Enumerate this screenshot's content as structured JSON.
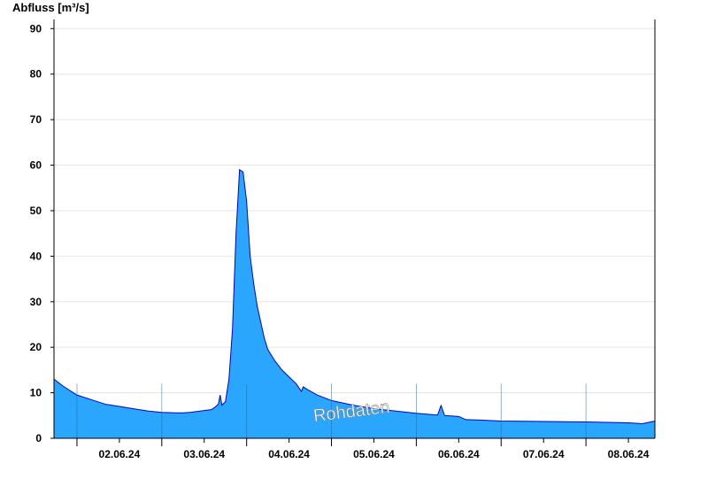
{
  "chart_data": {
    "type": "area",
    "title": "",
    "ylabel": "Abfluss [m³/s]",
    "xlabel": "",
    "watermark": "Rohdaten",
    "ylim": [
      0,
      92
    ],
    "yticks": [
      0,
      10,
      20,
      30,
      40,
      50,
      60,
      70,
      80,
      90
    ],
    "xlim": [
      "2024-06-01 17:30",
      "2024-06-08 19:30"
    ],
    "xticks": [
      "2024-06-02 12:00",
      "2024-06-03 12:00",
      "2024-06-04 12:00",
      "2024-06-05 12:00",
      "2024-06-06 12:00",
      "2024-06-07 12:00",
      "2024-06-08 12:00"
    ],
    "xtick_labels": [
      "02.06.24",
      "03.06.24",
      "04.06.24",
      "05.06.24",
      "06.06.24",
      "07.06.24",
      "08.06.24"
    ],
    "grid": true,
    "colors": {
      "fill": "#2ba6ff",
      "line": "#0000cc"
    },
    "series": [
      {
        "x": [
          "2024-06-01 17:30",
          "2024-06-01 20:00",
          "2024-06-02 00:00",
          "2024-06-02 04:00",
          "2024-06-02 08:00",
          "2024-06-02 12:00",
          "2024-06-02 16:00",
          "2024-06-02 20:00",
          "2024-06-03 00:00",
          "2024-06-03 04:00",
          "2024-06-03 06:00",
          "2024-06-03 08:00",
          "2024-06-03 12:00",
          "2024-06-03 14:00",
          "2024-06-03 15:00",
          "2024-06-03 16:00",
          "2024-06-03 16:30",
          "2024-06-03 17:00",
          "2024-06-03 18:00",
          "2024-06-03 19:00",
          "2024-06-03 20:00",
          "2024-06-03 21:00",
          "2024-06-03 22:00",
          "2024-06-03 23:00",
          "2024-06-04 00:00",
          "2024-06-04 01:00",
          "2024-06-04 02:00",
          "2024-06-04 03:00",
          "2024-06-04 04:00",
          "2024-06-04 05:00",
          "2024-06-04 06:00",
          "2024-06-04 08:00",
          "2024-06-04 10:00",
          "2024-06-04 12:00",
          "2024-06-04 14:00",
          "2024-06-04 15:30",
          "2024-06-04 16:00",
          "2024-06-04 17:00",
          "2024-06-04 20:00",
          "2024-06-05 00:00",
          "2024-06-05 06:00",
          "2024-06-05 12:00",
          "2024-06-05 18:00",
          "2024-06-06 00:00",
          "2024-06-06 06:00",
          "2024-06-06 07:00",
          "2024-06-06 08:00",
          "2024-06-06 12:00",
          "2024-06-06 14:00",
          "2024-06-06 18:00",
          "2024-06-07 00:00",
          "2024-06-07 12:00",
          "2024-06-08 00:00",
          "2024-06-08 12:00",
          "2024-06-08 16:00",
          "2024-06-08 19:30"
        ],
        "y": [
          13,
          11.5,
          9.5,
          8.5,
          7.5,
          7,
          6.5,
          6,
          5.7,
          5.6,
          5.6,
          5.7,
          6.1,
          6.3,
          6.8,
          7.5,
          9.5,
          7.3,
          8,
          13,
          24,
          45,
          59,
          58.5,
          52,
          40,
          34,
          29,
          25.5,
          22,
          19.5,
          17,
          15,
          13.5,
          12,
          10.3,
          11.3,
          10.8,
          9.5,
          8.3,
          7.3,
          6.5,
          6,
          5.5,
          5.1,
          7.2,
          5,
          4.8,
          4.1,
          4,
          3.8,
          3.7,
          3.6,
          3.4,
          3.2,
          3.8
        ]
      }
    ]
  }
}
